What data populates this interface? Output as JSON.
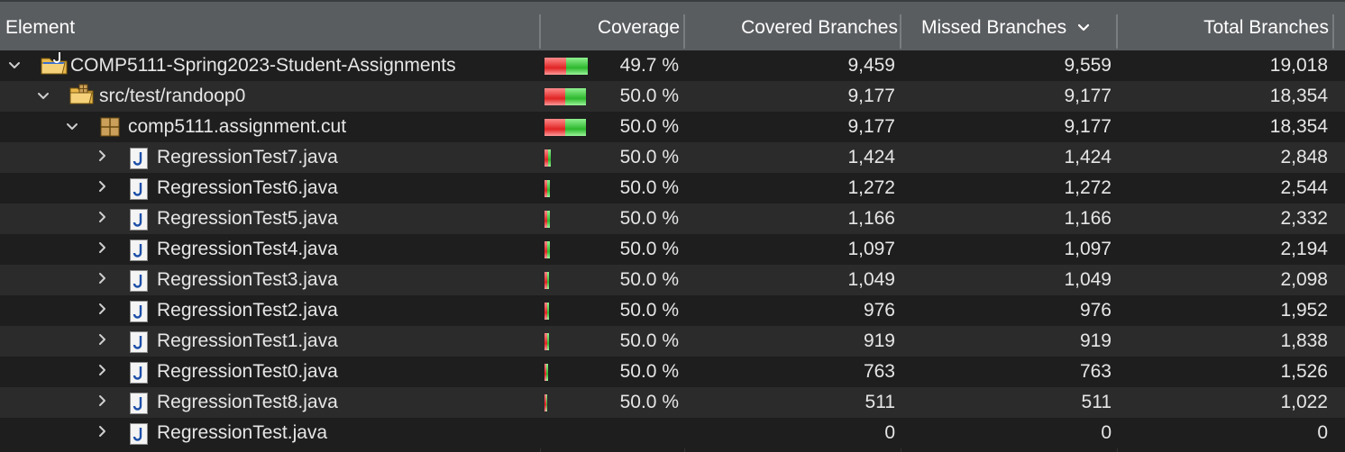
{
  "columns": {
    "element": "Element",
    "coverage": "Coverage",
    "covered": "Covered Branches",
    "missed": "Missed Branches",
    "missed_sort_icon": "chevron-down-icon",
    "total": "Total Branches"
  },
  "rows": [
    {
      "name": "COMP5111-Spring2023-Student-Assignments",
      "level": 0,
      "icon": "project-folder-icon",
      "toggle": "expanded",
      "coverage": "49.7 %",
      "covered": "9,459",
      "missed": "9,559",
      "total": "19,018",
      "coverage_fraction": 0.497
    },
    {
      "name": "src/test/randoop0",
      "level": 1,
      "icon": "source-folder-icon",
      "toggle": "expanded",
      "coverage": "50.0 %",
      "covered": "9,177",
      "missed": "9,177",
      "total": "18,354",
      "coverage_fraction": 0.5
    },
    {
      "name": "comp5111.assignment.cut",
      "level": 2,
      "icon": "package-icon",
      "toggle": "expanded",
      "coverage": "50.0 %",
      "covered": "9,177",
      "missed": "9,177",
      "total": "18,354",
      "coverage_fraction": 0.5
    },
    {
      "name": "RegressionTest7.java",
      "level": 3,
      "icon": "java-file-icon",
      "toggle": "collapsed",
      "coverage": "50.0 %",
      "covered": "1,424",
      "missed": "1,424",
      "total": "2,848",
      "coverage_fraction": 0.5
    },
    {
      "name": "RegressionTest6.java",
      "level": 3,
      "icon": "java-file-icon",
      "toggle": "collapsed",
      "coverage": "50.0 %",
      "covered": "1,272",
      "missed": "1,272",
      "total": "2,544",
      "coverage_fraction": 0.5
    },
    {
      "name": "RegressionTest5.java",
      "level": 3,
      "icon": "java-file-icon",
      "toggle": "collapsed",
      "coverage": "50.0 %",
      "covered": "1,166",
      "missed": "1,166",
      "total": "2,332",
      "coverage_fraction": 0.5
    },
    {
      "name": "RegressionTest4.java",
      "level": 3,
      "icon": "java-file-icon",
      "toggle": "collapsed",
      "coverage": "50.0 %",
      "covered": "1,097",
      "missed": "1,097",
      "total": "2,194",
      "coverage_fraction": 0.5
    },
    {
      "name": "RegressionTest3.java",
      "level": 3,
      "icon": "java-file-icon",
      "toggle": "collapsed",
      "coverage": "50.0 %",
      "covered": "1,049",
      "missed": "1,049",
      "total": "2,098",
      "coverage_fraction": 0.5
    },
    {
      "name": "RegressionTest2.java",
      "level": 3,
      "icon": "java-file-icon",
      "toggle": "collapsed",
      "coverage": "50.0 %",
      "covered": "976",
      "missed": "976",
      "total": "1,952",
      "coverage_fraction": 0.5
    },
    {
      "name": "RegressionTest1.java",
      "level": 3,
      "icon": "java-file-icon",
      "toggle": "collapsed",
      "coverage": "50.0 %",
      "covered": "919",
      "missed": "919",
      "total": "1,838",
      "coverage_fraction": 0.5
    },
    {
      "name": "RegressionTest0.java",
      "level": 3,
      "icon": "java-file-icon",
      "toggle": "collapsed",
      "coverage": "50.0 %",
      "covered": "763",
      "missed": "763",
      "total": "1,526",
      "coverage_fraction": 0.5
    },
    {
      "name": "RegressionTest8.java",
      "level": 3,
      "icon": "java-file-icon",
      "toggle": "collapsed",
      "coverage": "50.0 %",
      "covered": "511",
      "missed": "511",
      "total": "1,022",
      "coverage_fraction": 0.5
    },
    {
      "name": "RegressionTest.java",
      "level": 3,
      "icon": "java-file-icon",
      "toggle": "collapsed",
      "coverage": "",
      "covered": "0",
      "missed": "0",
      "total": "0",
      "coverage_fraction": null
    }
  ],
  "colors": {
    "header_bg": "#5a5d60",
    "row_bg": "#1e1e1e",
    "row_alt_bg": "#2b2b2b",
    "text": "#e6e6e6",
    "bar_red": "#e02424",
    "bar_green": "#2eb82e"
  }
}
